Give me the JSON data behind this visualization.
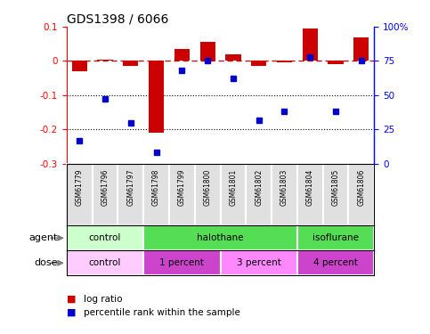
{
  "title": "GDS1398 / 6066",
  "samples": [
    "GSM61779",
    "GSM61796",
    "GSM61797",
    "GSM61798",
    "GSM61799",
    "GSM61800",
    "GSM61801",
    "GSM61802",
    "GSM61803",
    "GSM61804",
    "GSM61805",
    "GSM61806"
  ],
  "log_ratio": [
    -0.03,
    0.005,
    -0.015,
    -0.21,
    0.035,
    0.055,
    0.02,
    -0.015,
    -0.005,
    0.095,
    -0.01,
    0.07
  ],
  "percentile": [
    17,
    47,
    30,
    8,
    68,
    75,
    62,
    32,
    38,
    78,
    38,
    75
  ],
  "agent_groups": [
    {
      "label": "control",
      "start": 0,
      "end": 3,
      "color": "#CCFFCC"
    },
    {
      "label": "halothane",
      "start": 3,
      "end": 9,
      "color": "#55DD55"
    },
    {
      "label": "isoflurane",
      "start": 9,
      "end": 12,
      "color": "#55DD55"
    }
  ],
  "dose_groups": [
    {
      "label": "control",
      "start": 0,
      "end": 3,
      "color": "#FFCCFF"
    },
    {
      "label": "1 percent",
      "start": 3,
      "end": 6,
      "color": "#CC44CC"
    },
    {
      "label": "3 percent",
      "start": 6,
      "end": 9,
      "color": "#FF88FF"
    },
    {
      "label": "4 percent",
      "start": 9,
      "end": 12,
      "color": "#CC44CC"
    }
  ],
  "ylim_left": [
    -0.3,
    0.1
  ],
  "ylim_right": [
    0,
    100
  ],
  "yticks_left": [
    0.1,
    0,
    -0.1,
    -0.2,
    -0.3
  ],
  "yticks_right": [
    100,
    75,
    50,
    25,
    0
  ],
  "bar_color": "#CC0000",
  "dot_color": "#0000CC",
  "hline_color": "#CC0000",
  "bg_color": "#FFFFFF",
  "sample_cell_color": "#E0E0E0",
  "sample_border_color": "#BBBBBB"
}
